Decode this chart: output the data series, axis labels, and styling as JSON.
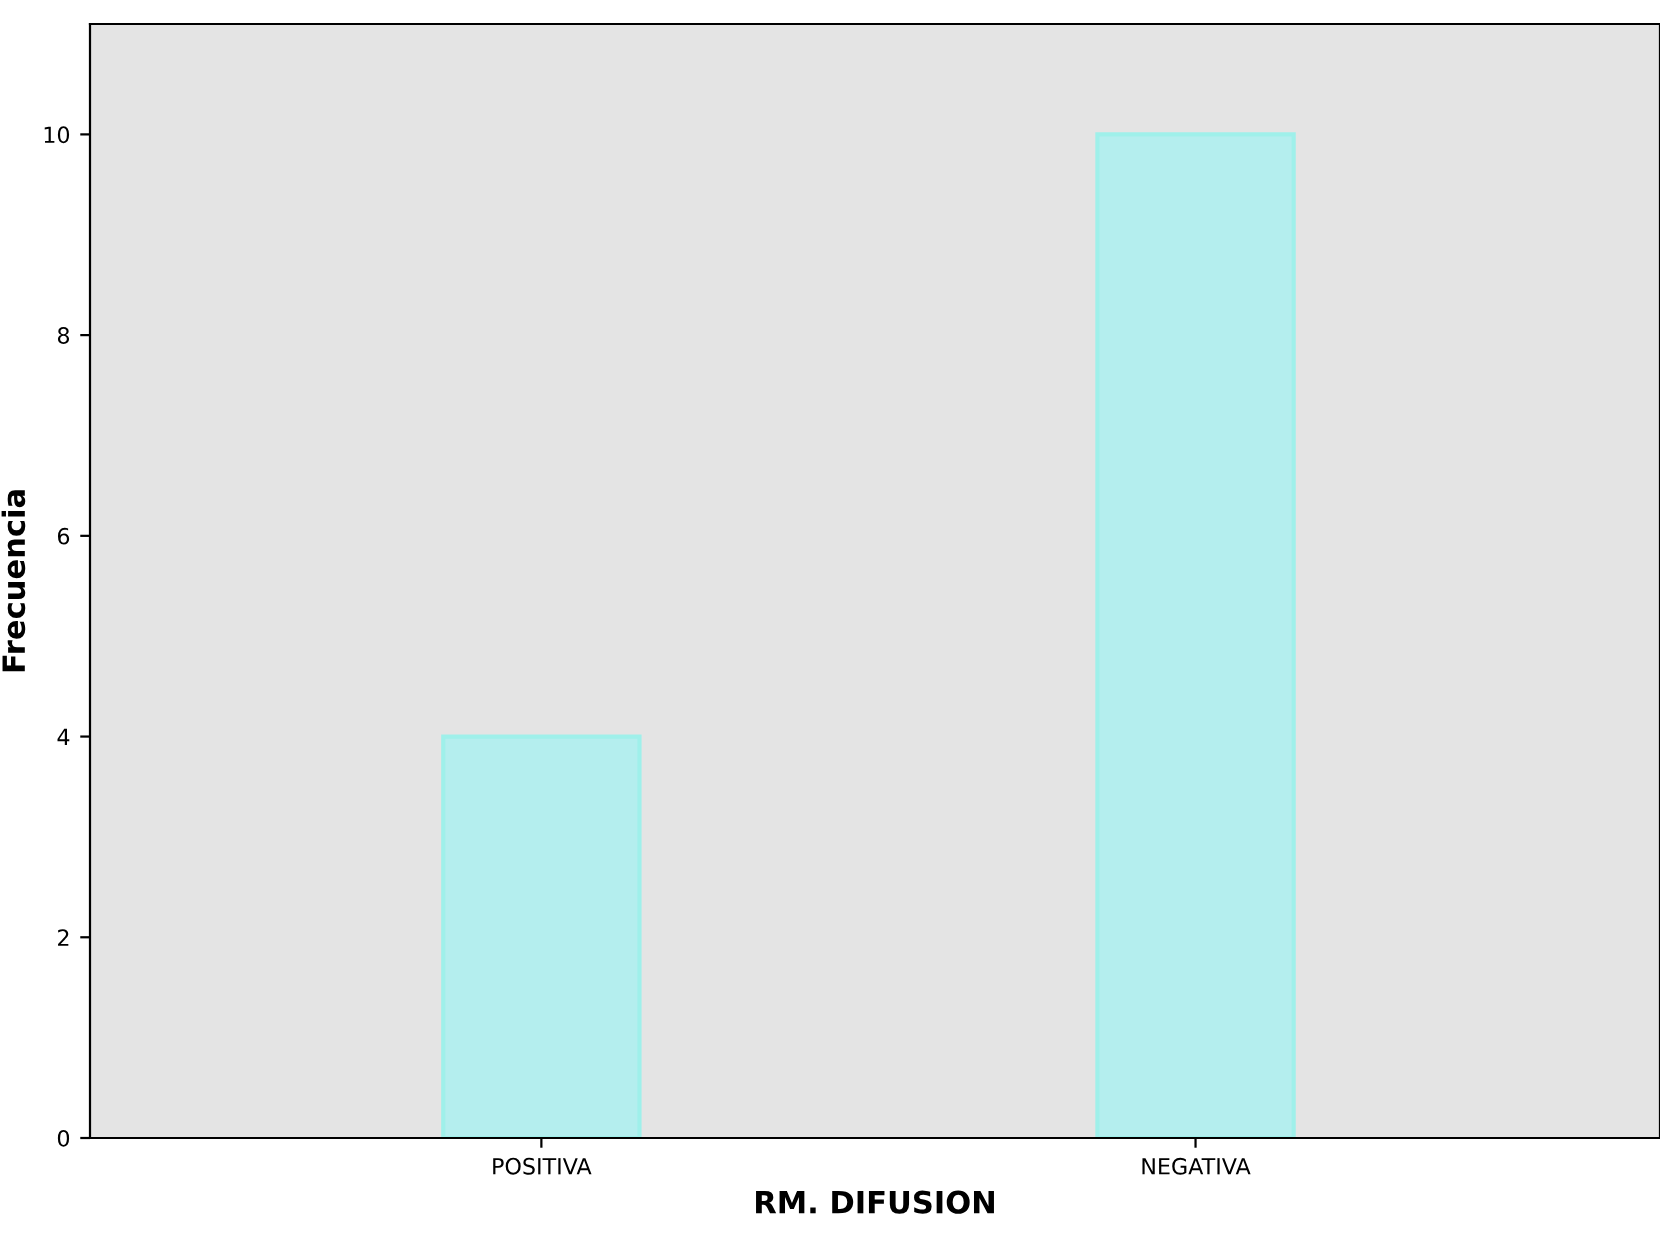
{
  "chart_data": {
    "type": "bar",
    "xlabel": "RM. DIFUSION",
    "ylabel": "Frecuencia",
    "categories": [
      "POSITIVA",
      "NEGATIVA"
    ],
    "values": [
      4,
      10
    ],
    "color": "#b4eeee",
    "ylim": [
      0,
      11.1
    ],
    "yticks": [
      0,
      2,
      4,
      6,
      8,
      10
    ],
    "grid": false,
    "legend": false
  }
}
